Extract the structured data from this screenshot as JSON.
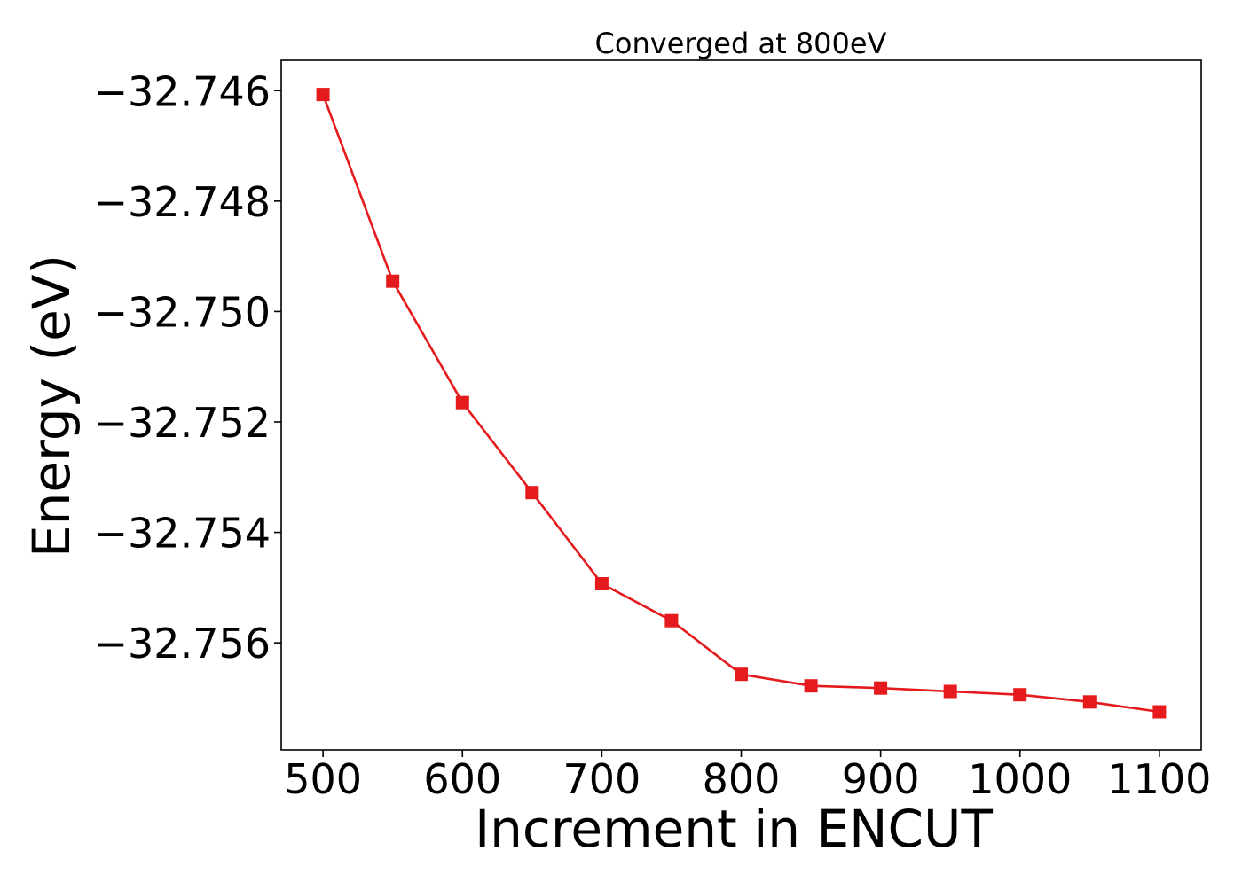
{
  "chart_data": {
    "type": "line",
    "title": "Converged at 800eV",
    "xlabel": "Increment in ENCUT",
    "ylabel": "Energy (eV)",
    "xlim": [
      470,
      1130
    ],
    "ylim": [
      -32.75794,
      -32.74545
    ],
    "x_ticks": [
      500,
      600,
      700,
      800,
      900,
      1000,
      1100
    ],
    "x_tick_labels": [
      "500",
      "600",
      "700",
      "800",
      "900",
      "1000",
      "1100"
    ],
    "y_ticks": [
      -32.746,
      -32.748,
      -32.75,
      -32.752,
      -32.754,
      -32.756
    ],
    "y_tick_labels": [
      "−32.746",
      "−32.748",
      "−32.750",
      "−32.752",
      "−32.754",
      "−32.756"
    ],
    "grid": false,
    "marker": "square",
    "color": "#e41a1c",
    "series": [
      {
        "x": [
          500,
          550,
          600,
          650,
          700,
          750,
          800,
          850,
          900,
          950,
          1000,
          1050,
          1100
        ],
        "values": [
          -32.74607,
          -32.74945,
          -32.75165,
          -32.75328,
          -32.75493,
          -32.7556,
          -32.75657,
          -32.75678,
          -32.75682,
          -32.75688,
          -32.75694,
          -32.75707,
          -32.75725
        ]
      }
    ]
  }
}
